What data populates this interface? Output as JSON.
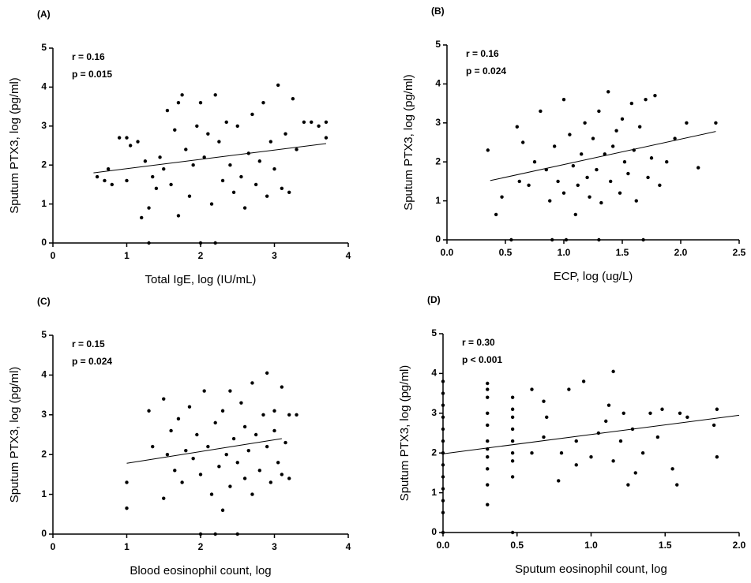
{
  "chart_data": [
    {
      "type": "scatter",
      "title": "(A)",
      "x_label": "Total IgE, log (IU/mL)",
      "y_label": "Sputum PTX3, log (pg/ml)",
      "annotations": [
        "r = 0.16",
        "p = 0.015"
      ],
      "color": "#000000",
      "xlim": [
        0,
        4
      ],
      "xticks": [
        0,
        1,
        2,
        3,
        4
      ],
      "ylim": [
        0,
        5
      ],
      "yticks": [
        0,
        1,
        2,
        3,
        4,
        5
      ],
      "x": [
        0.6,
        0.7,
        0.75,
        0.8,
        0.9,
        1.0,
        1.0,
        1.05,
        1.15,
        1.2,
        1.25,
        1.3,
        1.3,
        1.35,
        1.4,
        1.45,
        1.5,
        1.55,
        1.6,
        1.65,
        1.7,
        1.7,
        1.75,
        1.8,
        1.85,
        1.9,
        1.95,
        2.0,
        2.0,
        2.05,
        2.1,
        2.15,
        2.2,
        2.2,
        2.25,
        2.3,
        2.35,
        2.4,
        2.45,
        2.5,
        2.55,
        2.6,
        2.65,
        2.7,
        2.75,
        2.8,
        2.85,
        2.9,
        2.95,
        3.0,
        3.05,
        3.1,
        3.15,
        3.2,
        3.25,
        3.3,
        3.4,
        3.5,
        3.6,
        3.7,
        3.7
      ],
      "y": [
        1.7,
        1.6,
        1.9,
        1.5,
        2.7,
        2.7,
        1.6,
        2.5,
        2.6,
        0.65,
        2.1,
        0,
        0.9,
        1.7,
        1.4,
        2.2,
        1.9,
        3.4,
        1.5,
        2.9,
        3.6,
        0.7,
        3.8,
        2.4,
        1.2,
        2.0,
        3.0,
        0,
        3.6,
        2.2,
        2.8,
        1.0,
        3.8,
        0,
        2.6,
        1.6,
        3.1,
        2.0,
        1.3,
        3.0,
        1.7,
        0.9,
        2.3,
        3.3,
        1.5,
        2.1,
        3.6,
        1.2,
        2.6,
        1.9,
        4.05,
        1.4,
        2.8,
        1.3,
        3.7,
        2.4,
        3.1,
        3.1,
        3.0,
        3.1,
        2.7
      ],
      "trend": {
        "x": [
          0.55,
          3.7
        ],
        "y": [
          1.8,
          2.55
        ]
      }
    },
    {
      "type": "scatter",
      "title": "(B)",
      "x_label": "ECP, log (ug/L)",
      "y_label": "Sputum PTX3, log (pg/ml)",
      "annotations": [
        "r = 0.16",
        "p = 0.024"
      ],
      "color": "#000000",
      "xlim": [
        0,
        2.5
      ],
      "xticks": [
        {
          "value": 0,
          "label": "0.0"
        },
        0.5,
        {
          "value": 1,
          "label": "1.0"
        },
        1.5,
        {
          "value": 2,
          "label": "2.0"
        },
        2.5
      ],
      "ylim": [
        0,
        5
      ],
      "yticks": [
        0,
        1,
        2,
        3,
        4,
        5
      ],
      "x": [
        0.35,
        0.42,
        0.47,
        0.55,
        0.6,
        0.62,
        0.65,
        0.7,
        0.75,
        0.8,
        0.85,
        0.88,
        0.9,
        0.92,
        0.95,
        1.0,
        1.0,
        1.02,
        1.05,
        1.08,
        1.1,
        1.12,
        1.15,
        1.18,
        1.2,
        1.22,
        1.25,
        1.28,
        1.3,
        1.3,
        1.32,
        1.35,
        1.38,
        1.4,
        1.42,
        1.45,
        1.48,
        1.5,
        1.52,
        1.55,
        1.58,
        1.6,
        1.62,
        1.65,
        1.68,
        1.7,
        1.72,
        1.75,
        1.78,
        1.82,
        1.88,
        1.95,
        2.05,
        2.15,
        2.3
      ],
      "y": [
        2.3,
        0.65,
        1.1,
        0,
        2.9,
        1.5,
        2.5,
        1.4,
        2.0,
        3.3,
        1.8,
        1.0,
        0,
        2.4,
        1.5,
        3.6,
        1.2,
        0,
        2.7,
        1.9,
        0.65,
        1.4,
        2.2,
        3.0,
        1.6,
        1.1,
        2.6,
        1.8,
        0,
        3.3,
        0.95,
        2.2,
        3.8,
        1.5,
        2.4,
        2.8,
        1.2,
        3.1,
        2.0,
        1.7,
        3.5,
        2.3,
        1.0,
        2.9,
        0,
        3.6,
        1.6,
        2.1,
        3.7,
        1.4,
        2.0,
        2.6,
        3.0,
        1.85,
        3.0
      ],
      "trend": {
        "x": [
          0.37,
          2.3
        ],
        "y": [
          1.52,
          2.78
        ]
      }
    },
    {
      "type": "scatter",
      "title": "(C)",
      "x_label": "Blood eosinophil count, log",
      "y_label": "Sputum PTX3, log (pg/ml)",
      "annotations": [
        "r = 0.15",
        "p = 0.024"
      ],
      "color": "#000000",
      "xlim": [
        0,
        4
      ],
      "xticks": [
        0,
        1,
        2,
        3,
        4
      ],
      "ylim": [
        0,
        5
      ],
      "yticks": [
        0,
        1,
        2,
        3,
        4,
        5
      ],
      "x": [
        1.0,
        1.0,
        1.3,
        1.35,
        1.5,
        1.5,
        1.55,
        1.6,
        1.65,
        1.7,
        1.75,
        1.8,
        1.85,
        1.9,
        1.95,
        2.0,
        2.0,
        2.05,
        2.1,
        2.15,
        2.2,
        2.2,
        2.25,
        2.3,
        2.3,
        2.35,
        2.4,
        2.4,
        2.45,
        2.5,
        2.5,
        2.55,
        2.6,
        2.6,
        2.65,
        2.7,
        2.7,
        2.75,
        2.8,
        2.85,
        2.9,
        2.9,
        2.95,
        3.0,
        3.0,
        3.05,
        3.1,
        3.1,
        3.15,
        3.2,
        3.2,
        3.3
      ],
      "y": [
        1.3,
        0.65,
        3.1,
        2.2,
        3.4,
        0.9,
        2.0,
        2.6,
        1.6,
        2.9,
        1.3,
        2.1,
        3.2,
        1.9,
        2.5,
        0,
        1.5,
        3.6,
        2.2,
        1.0,
        2.8,
        0,
        1.7,
        3.1,
        0.6,
        2.0,
        3.6,
        1.2,
        2.4,
        0,
        1.8,
        3.3,
        2.7,
        1.4,
        2.1,
        3.8,
        1.0,
        2.5,
        1.6,
        3.0,
        4.05,
        2.2,
        1.3,
        3.1,
        2.6,
        1.8,
        3.7,
        1.5,
        2.3,
        3.0,
        1.4,
        3.0
      ],
      "trend": {
        "x": [
          1.0,
          3.1
        ],
        "y": [
          1.78,
          2.4
        ]
      }
    },
    {
      "type": "scatter",
      "title": "(D)",
      "x_label": "Sputum eosinophil count, log",
      "y_label": "Sputum PTX3, log (pg/ml)",
      "annotations": [
        "r = 0.30",
        "p < 0.001"
      ],
      "color": "#000000",
      "xlim": [
        0,
        2
      ],
      "xticks": [
        {
          "value": 0,
          "label": "0.0"
        },
        0.5,
        {
          "value": 1,
          "label": "1.0"
        },
        1.5,
        {
          "value": 2,
          "label": "2.0"
        }
      ],
      "ylim": [
        0,
        5
      ],
      "yticks": [
        0,
        1,
        2,
        3,
        4,
        5
      ],
      "x": [
        0,
        0,
        0,
        0,
        0,
        0,
        0,
        0,
        0,
        0,
        0,
        0,
        0,
        0.3,
        0.3,
        0.3,
        0.3,
        0.3,
        0.3,
        0.3,
        0.3,
        0.3,
        0.3,
        0.3,
        0.47,
        0.47,
        0.47,
        0.47,
        0.47,
        0.47,
        0.47,
        0.47,
        0.47,
        0.6,
        0.6,
        0.68,
        0.68,
        0.7,
        0.78,
        0.8,
        0.85,
        0.9,
        0.9,
        0.95,
        1.0,
        1.05,
        1.1,
        1.12,
        1.15,
        1.15,
        1.2,
        1.22,
        1.25,
        1.28,
        1.3,
        1.35,
        1.4,
        1.45,
        1.48,
        1.55,
        1.58,
        1.6,
        1.65,
        1.83,
        1.85,
        1.85
      ],
      "y": [
        0,
        0.5,
        0.8,
        1.1,
        1.4,
        1.7,
        2.0,
        2.3,
        2.6,
        2.9,
        3.2,
        3.5,
        3.8,
        0.7,
        1.2,
        1.6,
        1.9,
        2.1,
        2.3,
        2.7,
        3.0,
        3.4,
        3.6,
        3.75,
        0,
        1.4,
        1.8,
        2.0,
        2.3,
        2.6,
        2.9,
        3.1,
        3.4,
        3.6,
        2.0,
        3.3,
        2.4,
        2.9,
        1.3,
        2.0,
        3.6,
        1.7,
        2.3,
        3.8,
        1.9,
        2.5,
        2.8,
        3.2,
        4.05,
        1.8,
        2.3,
        3.0,
        1.2,
        2.6,
        1.5,
        2.0,
        3.0,
        2.4,
        3.1,
        1.6,
        1.2,
        3.0,
        2.9,
        2.7,
        3.1,
        1.9
      ],
      "trend": {
        "x": [
          0,
          2.0
        ],
        "y": [
          1.98,
          2.95
        ]
      }
    }
  ]
}
